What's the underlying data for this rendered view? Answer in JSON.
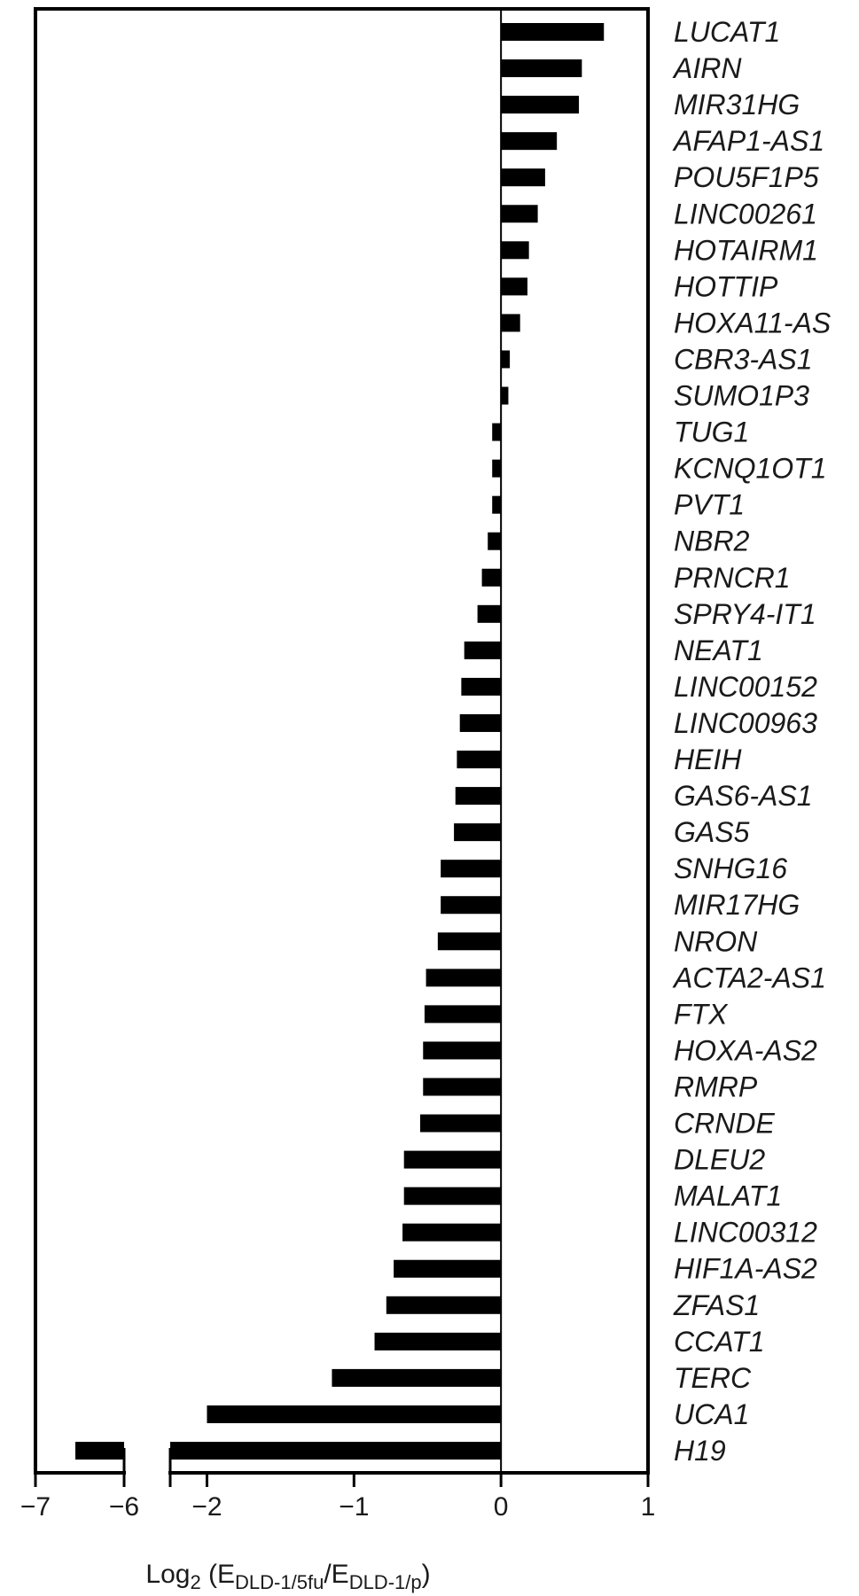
{
  "chart_data": {
    "type": "bar",
    "orientation": "horizontal",
    "broken_axis": true,
    "x_segments": [
      {
        "xlim": [
          -7,
          -6
        ],
        "ticks": [
          "−7",
          "−6"
        ]
      },
      {
        "xlim": [
          -2.25,
          1
        ],
        "ticks": [
          "−2",
          "−1",
          "0",
          "1"
        ]
      }
    ],
    "xlabel": {
      "main": "Log",
      "sub1": "2",
      "mid1": " (E",
      "sub2": "DLD-1/5fu",
      "mid2": "/E",
      "sub3": "DLD-1/p",
      "end": ")"
    },
    "categories": [
      "LUCAT1",
      "AIRN",
      "MIR31HG",
      "AFAP1-AS1",
      "POU5F1P5",
      "LINC00261",
      "HOTAIRM1",
      "HOTTIP",
      "HOXA11-AS",
      "CBR3-AS1",
      "SUMO1P3",
      "TUG1",
      "KCNQ1OT1",
      "PVT1",
      "NBR2",
      "PRNCR1",
      "SPRY4-IT1",
      "NEAT1",
      "LINC00152",
      "LINC00963",
      "HEIH",
      "GAS6-AS1",
      "GAS5",
      "SNHG16",
      "MIR17HG",
      "NRON",
      "ACTA2-AS1",
      "FTX",
      "HOXA-AS2",
      "RMRP",
      "CRNDE",
      "DLEU2",
      "MALAT1",
      "LINC00312",
      "HIF1A-AS2",
      "ZFAS1",
      "CCAT1",
      "TERC",
      "UCA1",
      "H19"
    ],
    "values": [
      0.7,
      0.55,
      0.53,
      0.38,
      0.3,
      0.25,
      0.19,
      0.18,
      0.13,
      0.06,
      0.05,
      -0.06,
      -0.06,
      -0.06,
      -0.09,
      -0.13,
      -0.16,
      -0.25,
      -0.27,
      -0.28,
      -0.3,
      -0.31,
      -0.32,
      -0.41,
      -0.41,
      -0.43,
      -0.51,
      -0.52,
      -0.53,
      -0.53,
      -0.55,
      -0.66,
      -0.66,
      -0.67,
      -0.73,
      -0.78,
      -0.86,
      -1.15,
      -2.0,
      -6.55
    ],
    "colors": {
      "bar": "#000000",
      "axis": "#000000"
    }
  }
}
